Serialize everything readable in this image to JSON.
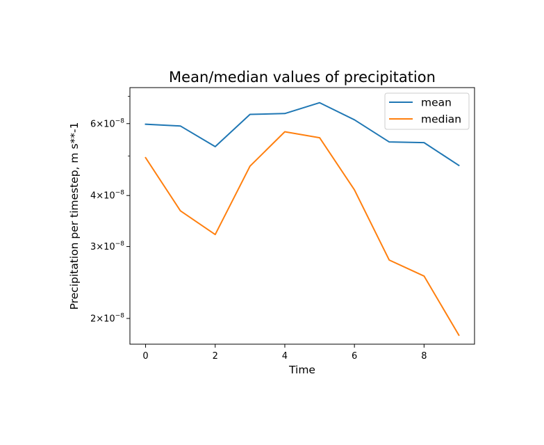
{
  "chart_data": {
    "type": "line",
    "title": "Mean/median values of precipitation",
    "xlabel": "Time",
    "ylabel": "Precipitation per timestep, m s**-1",
    "y_scale": "log",
    "xlim": [
      -0.45,
      9.45
    ],
    "ylim": [
      1.73e-08,
      7.35e-08
    ],
    "grid": false,
    "legend_position": "top-right",
    "x_ticks": [
      0,
      2,
      4,
      6,
      8
    ],
    "x_tick_labels": [
      "0",
      "2",
      "4",
      "6",
      "8"
    ],
    "y_major_ticks": [
      2e-08,
      3e-08,
      4e-08,
      6e-08
    ],
    "y_major_tick_labels": [
      {
        "mantissa": "2",
        "base": "10",
        "exponent": "−8"
      },
      {
        "mantissa": "3",
        "base": "10",
        "exponent": "−8"
      },
      {
        "mantissa": "4",
        "base": "10",
        "exponent": "−8"
      },
      {
        "mantissa": "6",
        "base": "10",
        "exponent": "−8"
      }
    ],
    "y_minor_ticks": [
      5e-08,
      7e-08
    ],
    "x": [
      0,
      1,
      2,
      3,
      4,
      5,
      6,
      7,
      8,
      9
    ],
    "series": [
      {
        "name": "mean",
        "color": "#1f77b4",
        "values": [
          5.98e-08,
          5.92e-08,
          5.27e-08,
          6.32e-08,
          6.35e-08,
          6.75e-08,
          6.13e-08,
          5.41e-08,
          5.39e-08,
          4.74e-08
        ]
      },
      {
        "name": "median",
        "color": "#ff7f0e",
        "values": [
          4.95e-08,
          3.67e-08,
          3.21e-08,
          4.72e-08,
          5.73e-08,
          5.54e-08,
          4.13e-08,
          2.78e-08,
          2.54e-08,
          1.82e-08
        ]
      }
    ]
  }
}
